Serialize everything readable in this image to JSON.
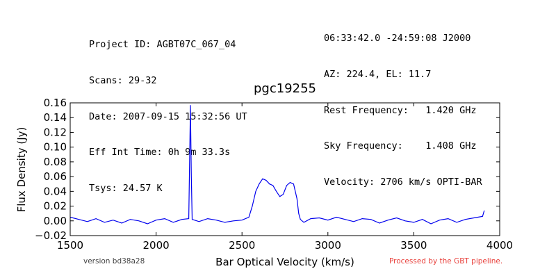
{
  "header": {
    "left_lines": [
      "Project ID: AGBT07C_067_04",
      "Scans: 29-32",
      "Date: 2007-09-15 15:32:56 UT",
      "Eff Int Time: 0h 9m 33.3s",
      "Tsys: 24.57 K"
    ],
    "right_lines": [
      "06:33:42.0 -24:59:08 J2000",
      "AZ: 224.4, EL: 11.7",
      "Rest Frequency:   1.420 GHz",
      "Sky Frequency:    1.408 GHz",
      "Velocity: 2706 km/s OPTI-BAR"
    ]
  },
  "footer": {
    "version": "version bd38a28",
    "processed": "Processed by the GBT pipeline.",
    "processed_color": "#e8413c"
  },
  "chart_data": {
    "type": "line",
    "title": "pgc19255",
    "xlabel": "Bar Optical Velocity (km/s)",
    "ylabel": "Flux Density (Jy)",
    "xlim": [
      1500,
      4000
    ],
    "ylim": [
      -0.02,
      0.16
    ],
    "xticks": [
      1500,
      2000,
      2500,
      3000,
      3500,
      4000
    ],
    "yticks": [
      -0.02,
      0.0,
      0.02,
      0.04,
      0.06,
      0.08,
      0.1,
      0.12,
      0.14,
      0.16
    ],
    "xtick_labels": [
      "1500",
      "2000",
      "2500",
      "3000",
      "3500",
      "4000"
    ],
    "ytick_labels": [
      "−0.02",
      "0.00",
      "0.02",
      "0.04",
      "0.06",
      "0.08",
      "0.10",
      "0.12",
      "0.14",
      "0.16"
    ],
    "grid": false,
    "line_color": "#0000ee",
    "series": [
      {
        "x": [
          1500,
          1550,
          1600,
          1650,
          1700,
          1750,
          1800,
          1850,
          1900,
          1950,
          2000,
          2050,
          2100,
          2150,
          2190,
          2195,
          2200,
          2205,
          2210,
          2250,
          2300,
          2350,
          2400,
          2450,
          2500,
          2540,
          2560,
          2580,
          2600,
          2620,
          2640,
          2660,
          2680,
          2700,
          2720,
          2740,
          2760,
          2780,
          2800,
          2820,
          2830,
          2840,
          2860,
          2900,
          2950,
          3000,
          3050,
          3100,
          3150,
          3200,
          3250,
          3300,
          3350,
          3400,
          3450,
          3500,
          3550,
          3600,
          3650,
          3700,
          3750,
          3800,
          3850,
          3900,
          3910
        ],
        "y": [
          0.005,
          0.002,
          -0.001,
          0.003,
          -0.002,
          0.001,
          -0.003,
          0.002,
          0.0,
          -0.004,
          0.001,
          0.003,
          -0.002,
          0.002,
          0.003,
          0.08,
          0.157,
          0.06,
          0.002,
          -0.001,
          0.003,
          0.001,
          -0.002,
          0.0,
          0.001,
          0.005,
          0.02,
          0.04,
          0.05,
          0.057,
          0.055,
          0.05,
          0.048,
          0.04,
          0.033,
          0.036,
          0.048,
          0.052,
          0.05,
          0.03,
          0.01,
          0.002,
          -0.002,
          0.003,
          0.004,
          0.001,
          0.005,
          0.002,
          -0.001,
          0.003,
          0.002,
          -0.003,
          0.001,
          0.004,
          0.0,
          -0.002,
          0.002,
          -0.004,
          0.001,
          0.003,
          -0.002,
          0.002,
          0.004,
          0.006,
          0.014
        ]
      }
    ]
  }
}
